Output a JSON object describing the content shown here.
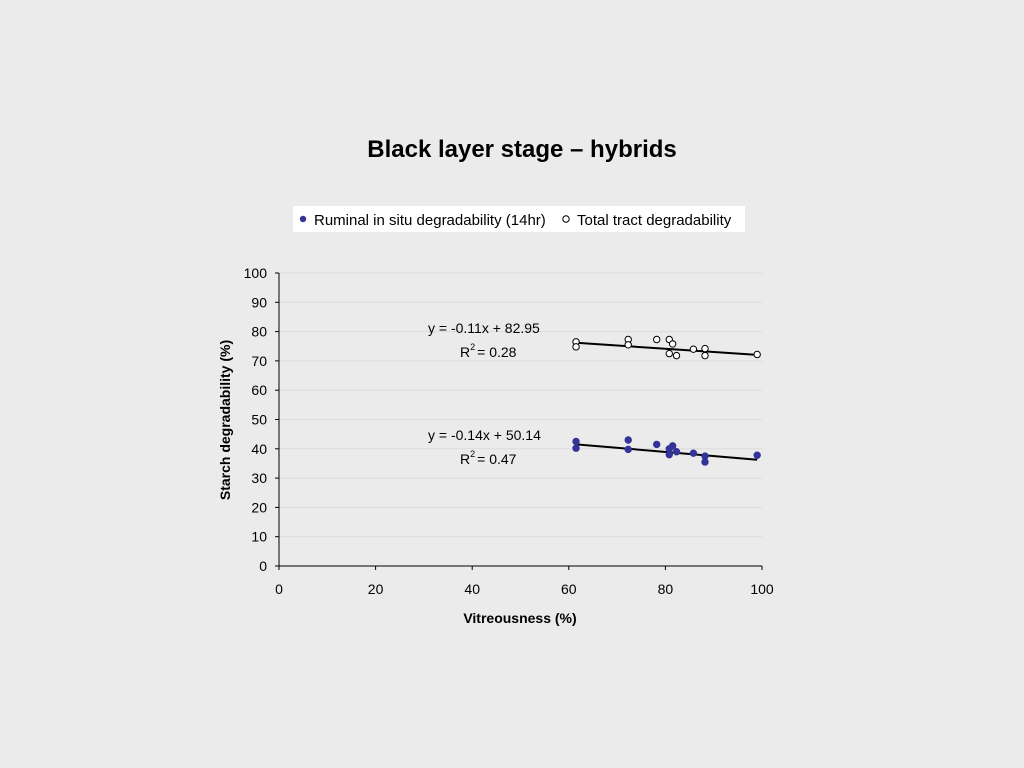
{
  "chart_data": {
    "type": "scatter",
    "title": "Black layer stage – hybrids",
    "xlabel": "Vitreousness (%)",
    "ylabel": "Starch degradability (%)",
    "xlim": [
      0,
      100
    ],
    "ylim": [
      0,
      100
    ],
    "xticks": [
      0,
      20,
      40,
      60,
      80,
      100
    ],
    "yticks": [
      0,
      10,
      20,
      30,
      40,
      50,
      60,
      70,
      80,
      90,
      100
    ],
    "grid": true,
    "legend_position": "top",
    "series": [
      {
        "name": "Ruminal in situ degradability (14hr)",
        "marker": "filled-circle",
        "color": "#333399",
        "points": [
          [
            61.5,
            42.5
          ],
          [
            61.5,
            40.2
          ],
          [
            72.3,
            43.0
          ],
          [
            72.3,
            39.8
          ],
          [
            78.2,
            41.5
          ],
          [
            80.8,
            40.0
          ],
          [
            80.8,
            38.0
          ],
          [
            81.5,
            41.0
          ],
          [
            82.3,
            39.0
          ],
          [
            85.8,
            38.5
          ],
          [
            88.2,
            37.5
          ],
          [
            88.2,
            35.5
          ],
          [
            99.0,
            37.8
          ]
        ],
        "trendline": {
          "slope": -0.14,
          "intercept": 50.14,
          "x_range": [
            61.5,
            99.0
          ]
        },
        "equation": "y = -0.14x + 50.14",
        "r2": "= 0.47"
      },
      {
        "name": "Total tract degradability",
        "marker": "open-circle",
        "color": "#000000",
        "points": [
          [
            61.5,
            76.5
          ],
          [
            61.5,
            74.8
          ],
          [
            72.3,
            77.3
          ],
          [
            72.3,
            75.5
          ],
          [
            78.2,
            77.3
          ],
          [
            80.8,
            77.3
          ],
          [
            81.5,
            75.8
          ],
          [
            80.8,
            72.5
          ],
          [
            82.3,
            71.8
          ],
          [
            85.8,
            74.0
          ],
          [
            88.2,
            74.2
          ],
          [
            88.2,
            71.8
          ],
          [
            99.0,
            72.2
          ]
        ],
        "trendline": {
          "slope": -0.11,
          "intercept": 82.95,
          "x_range": [
            61.5,
            99.0
          ]
        },
        "equation": "y = -0.11x + 82.95",
        "r2": "= 0.28"
      }
    ],
    "r2_symbol": "R",
    "r2_superscript": "2"
  }
}
